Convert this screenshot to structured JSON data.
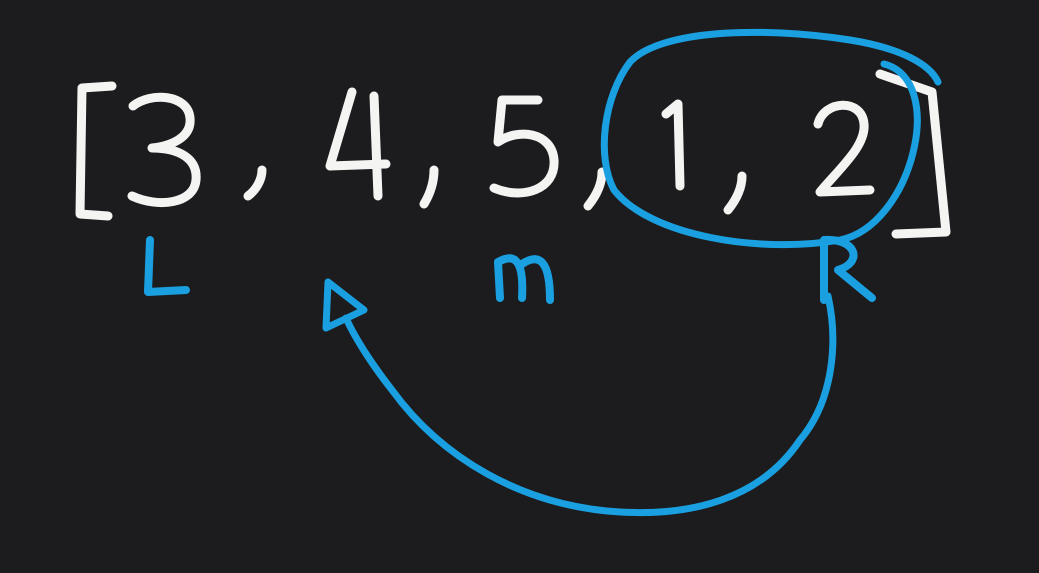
{
  "array": {
    "open_bracket": "[",
    "close_bracket": "]",
    "elements": [
      "3",
      "4",
      "5",
      "1",
      "2"
    ],
    "separator": ","
  },
  "pointers": {
    "left": "L",
    "mid": "M",
    "right": "R"
  },
  "colors": {
    "background": "#1c1c1e",
    "ink_white": "#f4f4f2",
    "ink_blue": "#1aa0e0"
  }
}
